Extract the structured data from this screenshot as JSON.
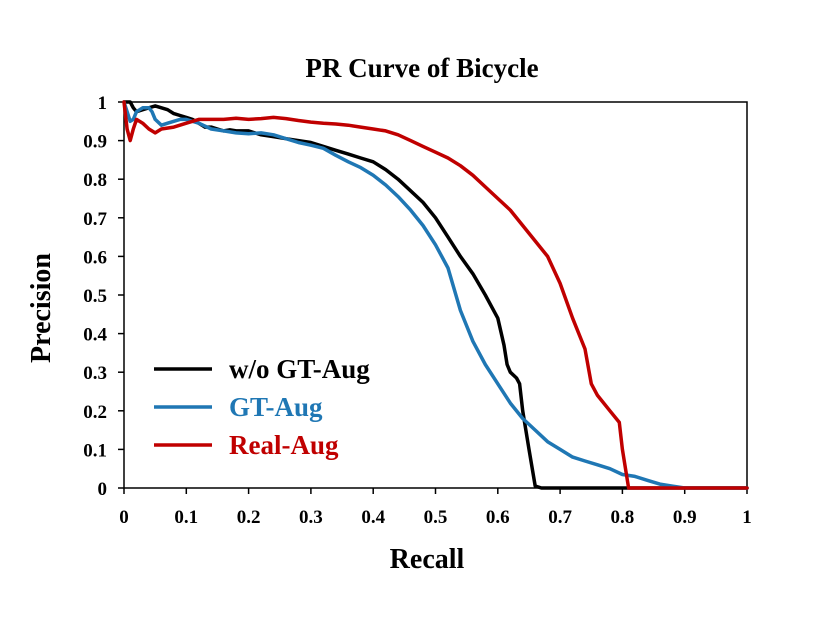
{
  "chart_data": {
    "type": "line",
    "title": "PR Curve of Bicycle",
    "xlabel": "Recall",
    "ylabel": "Precision",
    "xlim": [
      0,
      1
    ],
    "ylim": [
      0,
      1
    ],
    "grid": false,
    "legend_position": "bottom-left",
    "x_ticks": [
      "0",
      "0.1",
      "0.2",
      "0.3",
      "0.4",
      "0.5",
      "0.6",
      "0.7",
      "0.8",
      "0.9",
      "1"
    ],
    "y_ticks": [
      "0",
      "0.1",
      "0.2",
      "0.3",
      "0.4",
      "0.5",
      "0.6",
      "0.7",
      "0.8",
      "0.9",
      "1"
    ],
    "series": [
      {
        "name": "w/o GT-Aug",
        "color": "#000000",
        "points": [
          [
            0,
            1.0
          ],
          [
            0.005,
            1.0
          ],
          [
            0.01,
            1.0
          ],
          [
            0.015,
            0.985
          ],
          [
            0.02,
            0.975
          ],
          [
            0.03,
            0.98
          ],
          [
            0.04,
            0.985
          ],
          [
            0.05,
            0.99
          ],
          [
            0.06,
            0.985
          ],
          [
            0.07,
            0.98
          ],
          [
            0.08,
            0.97
          ],
          [
            0.09,
            0.965
          ],
          [
            0.1,
            0.96
          ],
          [
            0.11,
            0.955
          ],
          [
            0.12,
            0.945
          ],
          [
            0.13,
            0.935
          ],
          [
            0.14,
            0.935
          ],
          [
            0.15,
            0.93
          ],
          [
            0.16,
            0.925
          ],
          [
            0.17,
            0.928
          ],
          [
            0.18,
            0.925
          ],
          [
            0.2,
            0.925
          ],
          [
            0.22,
            0.915
          ],
          [
            0.24,
            0.91
          ],
          [
            0.26,
            0.905
          ],
          [
            0.28,
            0.9
          ],
          [
            0.3,
            0.895
          ],
          [
            0.32,
            0.885
          ],
          [
            0.34,
            0.875
          ],
          [
            0.36,
            0.865
          ],
          [
            0.38,
            0.855
          ],
          [
            0.4,
            0.845
          ],
          [
            0.42,
            0.825
          ],
          [
            0.44,
            0.8
          ],
          [
            0.46,
            0.77
          ],
          [
            0.48,
            0.74
          ],
          [
            0.5,
            0.7
          ],
          [
            0.52,
            0.65
          ],
          [
            0.54,
            0.6
          ],
          [
            0.56,
            0.555
          ],
          [
            0.58,
            0.5
          ],
          [
            0.6,
            0.44
          ],
          [
            0.61,
            0.37
          ],
          [
            0.615,
            0.32
          ],
          [
            0.62,
            0.3
          ],
          [
            0.63,
            0.285
          ],
          [
            0.635,
            0.27
          ],
          [
            0.64,
            0.2
          ],
          [
            0.65,
            0.1
          ],
          [
            0.66,
            0.005
          ],
          [
            0.67,
            0.0
          ],
          [
            0.8,
            0.0
          ],
          [
            1.0,
            0.0
          ]
        ]
      },
      {
        "name": "GT-Aug",
        "color": "#1f77b4",
        "points": [
          [
            0,
            1.0
          ],
          [
            0.005,
            0.975
          ],
          [
            0.01,
            0.95
          ],
          [
            0.015,
            0.955
          ],
          [
            0.02,
            0.975
          ],
          [
            0.03,
            0.985
          ],
          [
            0.04,
            0.985
          ],
          [
            0.045,
            0.975
          ],
          [
            0.05,
            0.955
          ],
          [
            0.06,
            0.94
          ],
          [
            0.07,
            0.945
          ],
          [
            0.08,
            0.95
          ],
          [
            0.09,
            0.955
          ],
          [
            0.1,
            0.955
          ],
          [
            0.12,
            0.945
          ],
          [
            0.14,
            0.93
          ],
          [
            0.16,
            0.925
          ],
          [
            0.18,
            0.92
          ],
          [
            0.2,
            0.918
          ],
          [
            0.22,
            0.92
          ],
          [
            0.24,
            0.915
          ],
          [
            0.26,
            0.905
          ],
          [
            0.28,
            0.895
          ],
          [
            0.3,
            0.888
          ],
          [
            0.32,
            0.88
          ],
          [
            0.34,
            0.862
          ],
          [
            0.36,
            0.845
          ],
          [
            0.38,
            0.83
          ],
          [
            0.4,
            0.81
          ],
          [
            0.42,
            0.785
          ],
          [
            0.44,
            0.755
          ],
          [
            0.46,
            0.72
          ],
          [
            0.48,
            0.68
          ],
          [
            0.5,
            0.63
          ],
          [
            0.52,
            0.57
          ],
          [
            0.54,
            0.46
          ],
          [
            0.56,
            0.38
          ],
          [
            0.58,
            0.32
          ],
          [
            0.6,
            0.27
          ],
          [
            0.62,
            0.22
          ],
          [
            0.64,
            0.18
          ],
          [
            0.66,
            0.15
          ],
          [
            0.68,
            0.12
          ],
          [
            0.7,
            0.1
          ],
          [
            0.72,
            0.08
          ],
          [
            0.74,
            0.07
          ],
          [
            0.76,
            0.06
          ],
          [
            0.78,
            0.05
          ],
          [
            0.8,
            0.035
          ],
          [
            0.82,
            0.03
          ],
          [
            0.84,
            0.02
          ],
          [
            0.86,
            0.01
          ],
          [
            0.88,
            0.005
          ],
          [
            0.9,
            0.0
          ],
          [
            1.0,
            0.0
          ]
        ]
      },
      {
        "name": "Real-Aug",
        "color": "#c00000",
        "points": [
          [
            0,
            1.0
          ],
          [
            0.005,
            0.93
          ],
          [
            0.01,
            0.9
          ],
          [
            0.015,
            0.93
          ],
          [
            0.02,
            0.955
          ],
          [
            0.03,
            0.945
          ],
          [
            0.04,
            0.93
          ],
          [
            0.05,
            0.92
          ],
          [
            0.06,
            0.93
          ],
          [
            0.08,
            0.935
          ],
          [
            0.1,
            0.945
          ],
          [
            0.12,
            0.955
          ],
          [
            0.14,
            0.955
          ],
          [
            0.16,
            0.955
          ],
          [
            0.18,
            0.958
          ],
          [
            0.2,
            0.955
          ],
          [
            0.22,
            0.957
          ],
          [
            0.24,
            0.96
          ],
          [
            0.26,
            0.957
          ],
          [
            0.28,
            0.952
          ],
          [
            0.3,
            0.948
          ],
          [
            0.32,
            0.945
          ],
          [
            0.34,
            0.943
          ],
          [
            0.36,
            0.94
          ],
          [
            0.38,
            0.935
          ],
          [
            0.4,
            0.93
          ],
          [
            0.42,
            0.925
          ],
          [
            0.44,
            0.915
          ],
          [
            0.46,
            0.9
          ],
          [
            0.48,
            0.885
          ],
          [
            0.5,
            0.87
          ],
          [
            0.52,
            0.855
          ],
          [
            0.54,
            0.835
          ],
          [
            0.56,
            0.81
          ],
          [
            0.58,
            0.78
          ],
          [
            0.6,
            0.75
          ],
          [
            0.62,
            0.72
          ],
          [
            0.64,
            0.68
          ],
          [
            0.66,
            0.64
          ],
          [
            0.68,
            0.6
          ],
          [
            0.7,
            0.53
          ],
          [
            0.72,
            0.44
          ],
          [
            0.74,
            0.36
          ],
          [
            0.75,
            0.27
          ],
          [
            0.76,
            0.24
          ],
          [
            0.78,
            0.2
          ],
          [
            0.795,
            0.17
          ],
          [
            0.8,
            0.1
          ],
          [
            0.81,
            0.0
          ],
          [
            0.9,
            0.0
          ],
          [
            1.0,
            0.0
          ]
        ]
      }
    ]
  }
}
